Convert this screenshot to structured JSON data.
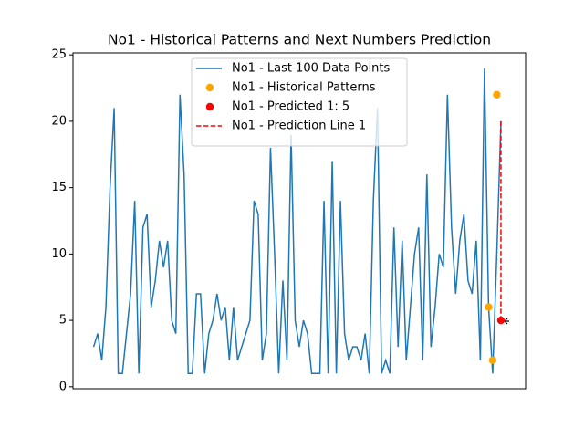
{
  "chart_data": {
    "type": "line",
    "title": "No1 - Historical Patterns and Next Numbers Prediction",
    "xlim": [
      -5,
      105
    ],
    "ylim": [
      -0.15,
      25.15
    ],
    "yticks": [
      0,
      5,
      10,
      15,
      20,
      25
    ],
    "legend": "upper center",
    "series": [
      {
        "name": "No1 - Last 100 Data Points",
        "type": "line",
        "color": "#1f77b4",
        "values": [
          3,
          4,
          2,
          6,
          15,
          21,
          1,
          1,
          4,
          7,
          14,
          1,
          12,
          13,
          6,
          8,
          11,
          9,
          11,
          5,
          4,
          22,
          16,
          1,
          1,
          7,
          7,
          1,
          4,
          5,
          7,
          5,
          6,
          2,
          6,
          2,
          3,
          4,
          5,
          14,
          13,
          2,
          4,
          18,
          10,
          1,
          8,
          2,
          19,
          5,
          3,
          5,
          4,
          1,
          1,
          1,
          14,
          1,
          17,
          1,
          14,
          4,
          2,
          3,
          3,
          2,
          4,
          1,
          14,
          21,
          1,
          2,
          1,
          12,
          3,
          11,
          2,
          6,
          10,
          12,
          2,
          16,
          3,
          6,
          10,
          9,
          22,
          12,
          7,
          11,
          13,
          8,
          7,
          11,
          2,
          24,
          6,
          1,
          10,
          20
        ]
      },
      {
        "name": "No1 - Historical Patterns",
        "type": "scatter",
        "color": "#ffa500",
        "x": [
          96,
          97,
          98
        ],
        "values": [
          6,
          2,
          22
        ]
      },
      {
        "name": "No1 - Predicted 1: 5",
        "type": "scatter",
        "color": "#ff0000",
        "x": [
          99
        ],
        "values": [
          5
        ]
      },
      {
        "name": "No1 - Prediction Line 1",
        "type": "dashed",
        "color": "#ff0000",
        "x": [
          99,
          99
        ],
        "values": [
          20,
          5
        ]
      }
    ]
  }
}
